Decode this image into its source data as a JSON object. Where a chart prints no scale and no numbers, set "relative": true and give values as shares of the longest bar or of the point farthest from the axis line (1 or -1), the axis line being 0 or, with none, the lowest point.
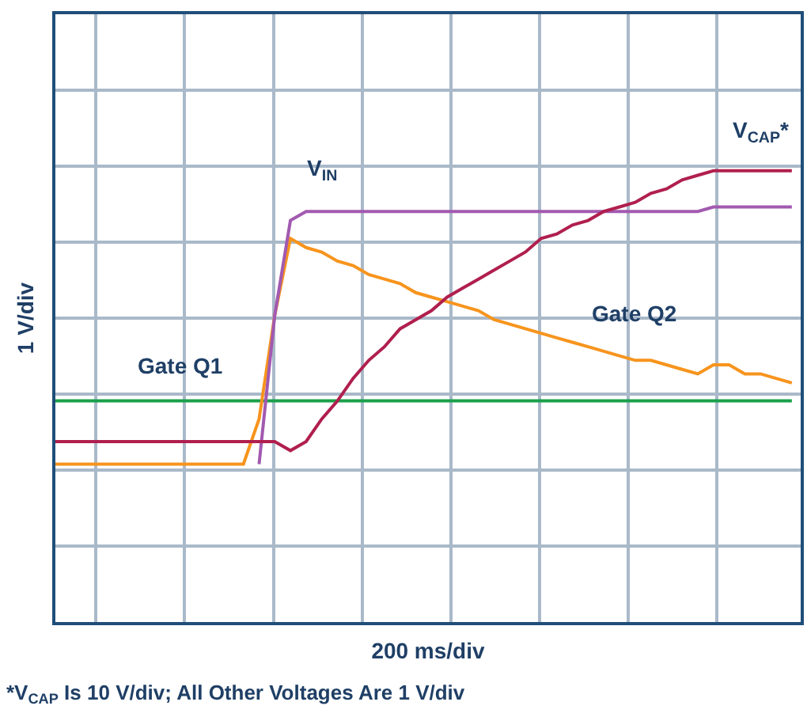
{
  "chart_data": {
    "type": "line",
    "relative": true,
    "xlabel": "200 ms/div",
    "ylabel": "1 V/div",
    "annotations": [
      "*V$_{CAP}$ Is 10 V/div; All Other Voltages Are 1 V/div"
    ],
    "categories": [
      null,
      null,
      null,
      null,
      null,
      null,
      null,
      null,
      null,
      null,
      null,
      null,
      null,
      null,
      null,
      null,
      null,
      null,
      null,
      null,
      null,
      null,
      null,
      null,
      null,
      null,
      null,
      null,
      null,
      null,
      null,
      null,
      null,
      null,
      null,
      null,
      null,
      null,
      null,
      null,
      null,
      null,
      null,
      null,
      null,
      null,
      null,
      null
    ],
    "grid": true,
    "legend": false,
    "line_style": "solid",
    "marker": "none",
    "series": [
      {
        "name": "Gate Q1",
        "color": "#1aa04a",
        "values": [
          0.49,
          0.49,
          0.49,
          0.49,
          0.49,
          0.49,
          0.49,
          0.49,
          0.49,
          0.49,
          0.49,
          0.49,
          0.49,
          0.49,
          0.49,
          0.49,
          0.49,
          0.49,
          0.49,
          0.49,
          0.49,
          0.49,
          0.49,
          0.49,
          0.49,
          0.49,
          0.49,
          0.49,
          0.49,
          0.49,
          0.49,
          0.49,
          0.49,
          0.49,
          0.49,
          0.49,
          0.49,
          0.49,
          0.49,
          0.49,
          0.49,
          0.49,
          0.49,
          0.49,
          0.49,
          0.49,
          0.49,
          0.49
        ]
      },
      {
        "name": "Gate Q2",
        "color": "#f7941d",
        "values": [
          0.35,
          0.35,
          0.35,
          0.35,
          0.35,
          0.35,
          0.35,
          0.35,
          0.35,
          0.35,
          0.35,
          0.35,
          0.35,
          0.45,
          0.68,
          0.85,
          0.83,
          0.82,
          0.8,
          0.79,
          0.77,
          0.76,
          0.75,
          0.73,
          0.72,
          0.71,
          0.7,
          0.69,
          0.67,
          0.66,
          0.65,
          0.64,
          0.63,
          0.62,
          0.61,
          0.6,
          0.59,
          0.58,
          0.58,
          0.57,
          0.56,
          0.55,
          0.57,
          0.57,
          0.55,
          0.55,
          0.54,
          0.53
        ]
      },
      {
        "name": "V$_{IN}$",
        "color": "#a25ab0",
        "values": [
          null,
          null,
          null,
          null,
          null,
          null,
          null,
          null,
          null,
          null,
          null,
          null,
          null,
          0.35,
          0.68,
          0.89,
          0.91,
          0.91,
          0.91,
          0.91,
          0.91,
          0.91,
          0.91,
          0.91,
          0.91,
          0.91,
          0.91,
          0.91,
          0.91,
          0.91,
          0.91,
          0.91,
          0.91,
          0.91,
          0.91,
          0.91,
          0.91,
          0.91,
          0.91,
          0.91,
          0.91,
          0.91,
          0.92,
          0.92,
          0.92,
          0.92,
          0.92,
          0.92
        ]
      },
      {
        "name": "V$_{CAP}$*",
        "color": "#b01f4e",
        "values": [
          0.4,
          0.4,
          0.4,
          0.4,
          0.4,
          0.4,
          0.4,
          0.4,
          0.4,
          0.4,
          0.4,
          0.4,
          0.4,
          0.4,
          0.4,
          0.38,
          0.4,
          0.45,
          0.49,
          0.54,
          0.58,
          0.61,
          0.65,
          0.67,
          0.69,
          0.72,
          0.74,
          0.76,
          0.78,
          0.8,
          0.82,
          0.85,
          0.86,
          0.88,
          0.89,
          0.91,
          0.92,
          0.93,
          0.95,
          0.96,
          0.98,
          0.99,
          1,
          1,
          1,
          1,
          1,
          1
        ]
      }
    ]
  }
}
